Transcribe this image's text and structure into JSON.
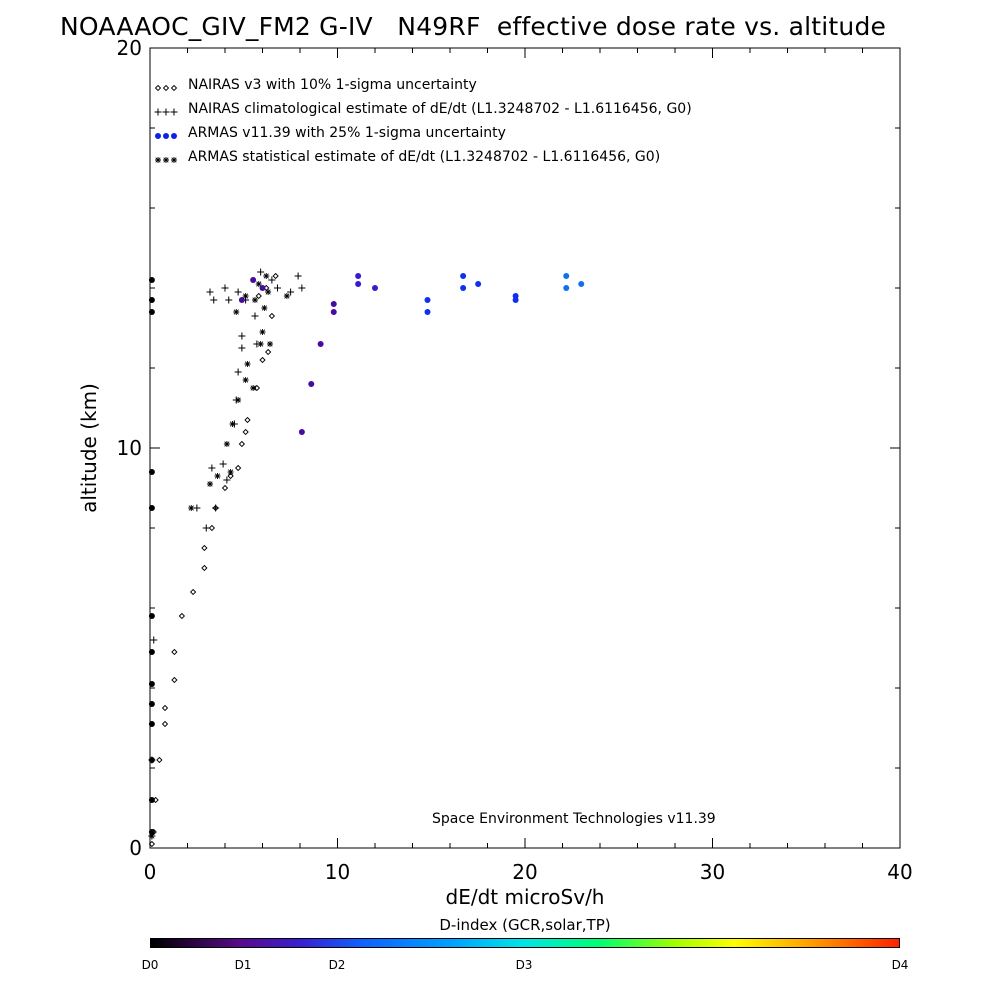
{
  "title": "NOAAAOC_GIV_FM2 G-IV   N49RF  effective dose rate vs. altitude",
  "credit": "Space Environment Technologies v11.39",
  "colorbar": {
    "title": "D-index (GCR,solar,TP)",
    "ticks": [
      {
        "label": "D0",
        "value": 0
      },
      {
        "label": "D1",
        "value": 1
      },
      {
        "label": "D2",
        "value": 2
      },
      {
        "label": "D3",
        "value": 3
      },
      {
        "label": "D4",
        "value": 4
      }
    ]
  },
  "chart_data": {
    "type": "scatter",
    "xlabel": "dE/dt microSv/h",
    "ylabel": "altitude (km)",
    "xlim": [
      0,
      40
    ],
    "ylim": [
      0,
      20
    ],
    "xticks": [
      0,
      10,
      20,
      30,
      40
    ],
    "yticks": [
      0,
      10,
      20
    ],
    "legend_placement": "top-left",
    "series": [
      {
        "name": "NAIRAS v3 with 10% 1-sigma uncertainty",
        "marker": "diamond",
        "color": "#000000",
        "points": [
          [
            0.1,
            0.1
          ],
          [
            0.2,
            0.4
          ],
          [
            0.3,
            1.2
          ],
          [
            0.5,
            2.2
          ],
          [
            0.8,
            3.1
          ],
          [
            0.8,
            3.5
          ],
          [
            1.3,
            4.2
          ],
          [
            1.3,
            4.9
          ],
          [
            1.7,
            5.8
          ],
          [
            2.3,
            6.4
          ],
          [
            2.9,
            7.0
          ],
          [
            2.9,
            7.5
          ],
          [
            3.3,
            8.0
          ],
          [
            3.5,
            8.5
          ],
          [
            4.0,
            9.0
          ],
          [
            4.3,
            9.3
          ],
          [
            4.7,
            9.5
          ],
          [
            4.9,
            10.1
          ],
          [
            5.1,
            10.4
          ],
          [
            5.2,
            10.7
          ],
          [
            5.7,
            11.5
          ],
          [
            6.0,
            12.2
          ],
          [
            6.3,
            12.4
          ],
          [
            6.5,
            13.3
          ],
          [
            5.8,
            13.8
          ],
          [
            6.2,
            14.0
          ],
          [
            6.7,
            14.3
          ]
        ]
      },
      {
        "name": "NAIRAS climatological estimate of dE/dt (L1.3248702 - L1.6116456, G0)",
        "marker": "plus",
        "color": "#000000",
        "points": [
          [
            0.1,
            0.3
          ],
          [
            0.1,
            2.2
          ],
          [
            0.2,
            5.2
          ],
          [
            2.5,
            8.5
          ],
          [
            3.0,
            8.0
          ],
          [
            3.3,
            9.5
          ],
          [
            3.5,
            8.5
          ],
          [
            3.9,
            9.6
          ],
          [
            4.1,
            9.2
          ],
          [
            4.5,
            10.6
          ],
          [
            4.6,
            11.2
          ],
          [
            4.7,
            11.9
          ],
          [
            4.9,
            12.5
          ],
          [
            4.9,
            12.8
          ],
          [
            5.1,
            13.7
          ],
          [
            4.2,
            13.7
          ],
          [
            4.0,
            14.0
          ],
          [
            3.2,
            13.9
          ],
          [
            3.4,
            13.7
          ],
          [
            4.7,
            13.9
          ],
          [
            5.7,
            12.6
          ],
          [
            5.6,
            13.3
          ],
          [
            6.5,
            14.2
          ],
          [
            6.8,
            14.0
          ],
          [
            7.5,
            13.9
          ],
          [
            7.9,
            14.3
          ],
          [
            8.1,
            14.0
          ],
          [
            5.9,
            14.4
          ]
        ]
      },
      {
        "name": "ARMAS v11.39 with 25% 1-sigma uncertainty",
        "marker": "dot",
        "color": "#0b22e6",
        "points": [
          [
            0.1,
            0.4
          ],
          [
            0.1,
            1.2
          ],
          [
            0.1,
            2.2
          ],
          [
            0.1,
            3.1
          ],
          [
            0.1,
            3.6
          ],
          [
            0.1,
            4.1
          ],
          [
            0.1,
            4.9
          ],
          [
            0.1,
            5.8
          ],
          [
            0.1,
            8.5
          ],
          [
            0.1,
            9.4
          ],
          [
            0.1,
            13.4
          ],
          [
            0.1,
            13.7
          ],
          [
            0.1,
            14.2
          ],
          [
            4.9,
            13.7
          ],
          [
            5.5,
            14.2
          ],
          [
            6.0,
            14.0
          ],
          [
            8.1,
            10.4
          ],
          [
            8.6,
            11.6
          ],
          [
            9.1,
            12.6
          ],
          [
            9.8,
            13.4
          ],
          [
            9.8,
            13.6
          ],
          [
            11.1,
            14.1
          ],
          [
            11.1,
            14.3
          ],
          [
            12.0,
            14.0
          ],
          [
            14.8,
            13.4
          ],
          [
            14.8,
            13.7
          ],
          [
            16.7,
            14.0
          ],
          [
            16.7,
            14.3
          ],
          [
            17.5,
            14.1
          ],
          [
            19.5,
            13.7
          ],
          [
            19.5,
            13.8
          ],
          [
            22.2,
            14.0
          ],
          [
            22.2,
            14.3
          ],
          [
            23.0,
            14.1
          ]
        ]
      },
      {
        "name": "ARMAS statistical estimate of dE/dt (L1.3248702 - L1.6116456, G0)",
        "marker": "asterisk",
        "color": "#000000",
        "points": [
          [
            0.1,
            0.3
          ],
          [
            2.2,
            8.5
          ],
          [
            3.2,
            9.1
          ],
          [
            3.6,
            9.3
          ],
          [
            4.3,
            9.4
          ],
          [
            4.1,
            10.1
          ],
          [
            4.4,
            10.6
          ],
          [
            4.7,
            11.2
          ],
          [
            5.1,
            11.7
          ],
          [
            5.2,
            12.1
          ],
          [
            5.5,
            11.5
          ],
          [
            5.9,
            12.6
          ],
          [
            6.0,
            12.9
          ],
          [
            6.4,
            12.6
          ],
          [
            4.6,
            13.4
          ],
          [
            5.1,
            13.8
          ],
          [
            5.6,
            13.7
          ],
          [
            6.1,
            13.5
          ],
          [
            6.3,
            13.9
          ],
          [
            7.3,
            13.8
          ],
          [
            5.8,
            14.1
          ],
          [
            6.2,
            14.3
          ]
        ]
      }
    ]
  }
}
